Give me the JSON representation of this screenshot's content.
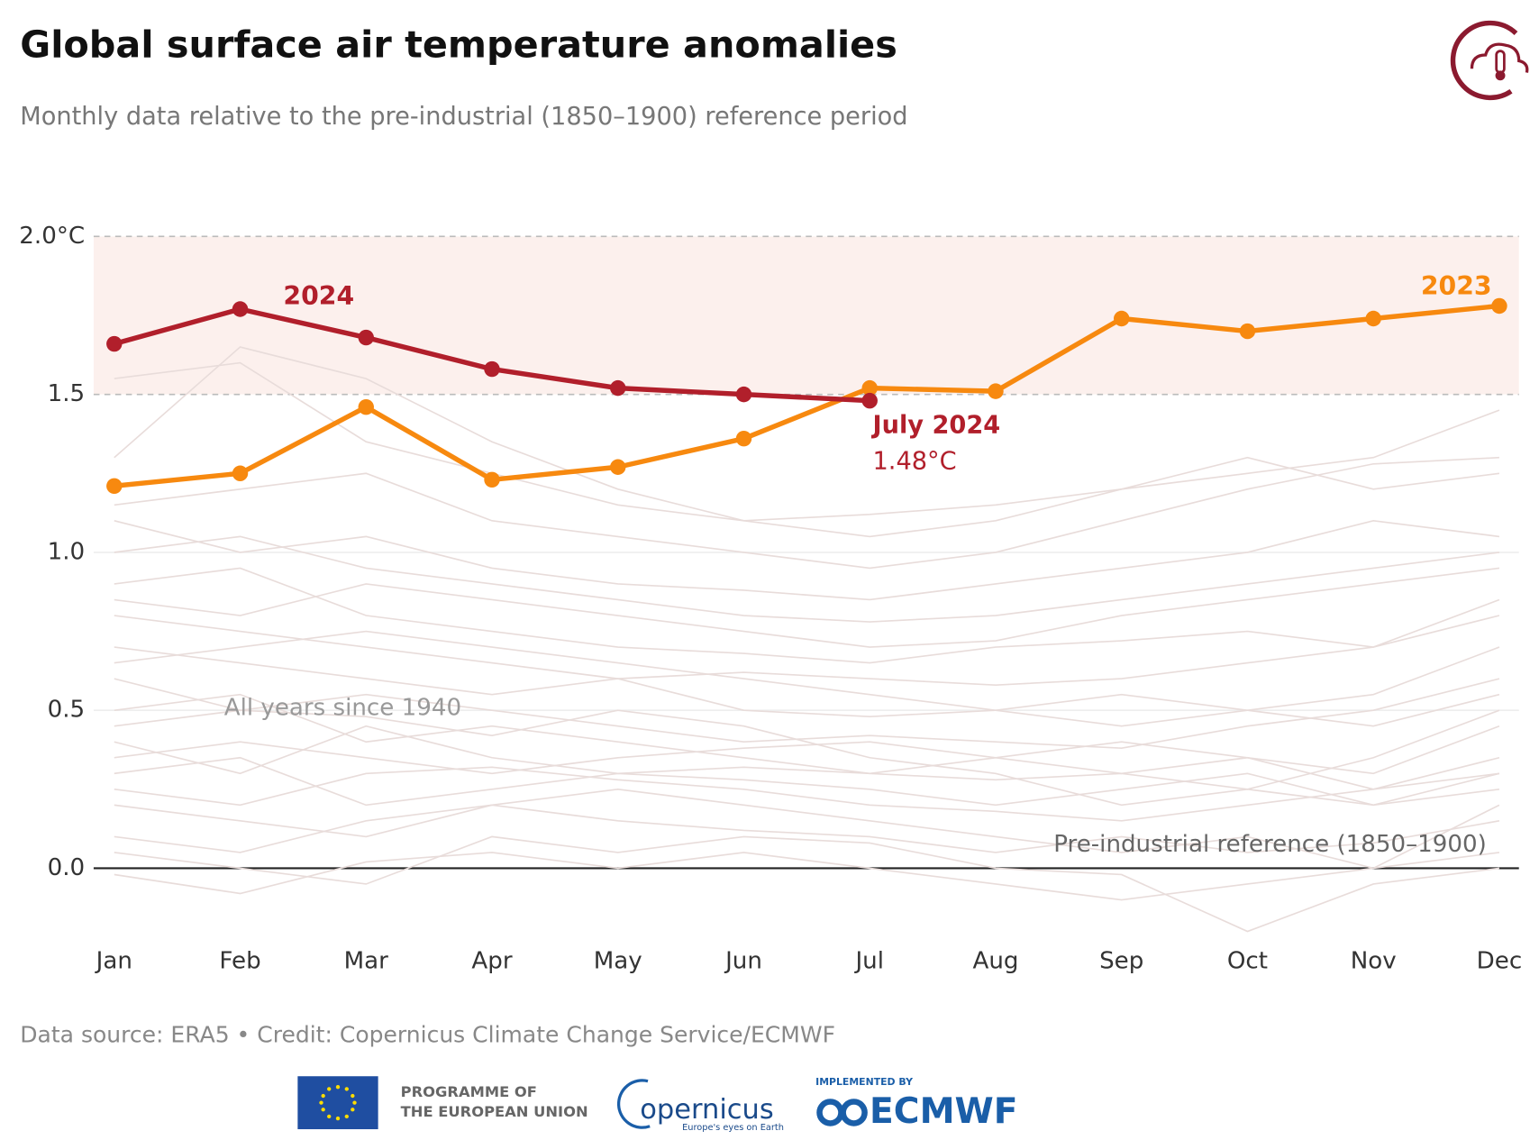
{
  "chart_data": {
    "type": "line",
    "title": "Global surface air temperature anomalies",
    "subtitle": "Monthly data relative to the pre-industrial (1850–1900) reference period",
    "categories": [
      "Jan",
      "Feb",
      "Mar",
      "Apr",
      "May",
      "Jun",
      "Jul",
      "Aug",
      "Sep",
      "Oct",
      "Nov",
      "Dec"
    ],
    "ylim": [
      -0.25,
      2.0
    ],
    "yticks": [
      {
        "value": 0,
        "label": "0.0"
      },
      0.5,
      {
        "value": 1,
        "label": "1.0"
      },
      {
        "value": 1.5,
        "label": "1.5"
      },
      {
        "value": 2,
        "label": "2.0°C"
      }
    ],
    "band": [
      1.5,
      2.0
    ],
    "band_color": "#fcf0ed",
    "series": [
      {
        "name": "2023",
        "color": "#f7890f",
        "values": [
          1.21,
          1.25,
          1.46,
          1.23,
          1.27,
          1.36,
          1.52,
          1.51,
          1.74,
          1.7,
          1.74,
          1.78
        ]
      },
      {
        "name": "2024",
        "color": "#b11f2b",
        "values": [
          1.66,
          1.77,
          1.68,
          1.58,
          1.52,
          1.5,
          1.48,
          null,
          null,
          null,
          null,
          null
        ],
        "value_labels": [
          null,
          null,
          null,
          null,
          null,
          null,
          "1.48°C",
          null,
          null,
          null,
          null,
          null
        ]
      }
    ],
    "annotations": {
      "latest": "July 2024",
      "reference": "Pre-industrial reference (1850–1900)"
    },
    "background": {
      "label": "All years since 1940",
      "color": "#e8dcda",
      "series": [
        [
          0.05,
          0.0,
          -0.05,
          0.1,
          0.05,
          0.1,
          0.08,
          0.0,
          -0.02,
          -0.2,
          -0.05,
          0.0
        ],
        [
          0.2,
          0.15,
          0.1,
          0.2,
          0.25,
          0.2,
          0.15,
          0.1,
          0.05,
          0.1,
          0.0,
          0.2
        ],
        [
          0.3,
          0.35,
          0.2,
          0.25,
          0.3,
          0.28,
          0.25,
          0.2,
          0.25,
          0.3,
          0.2,
          0.3
        ],
        [
          0.4,
          0.3,
          0.45,
          0.35,
          0.3,
          0.32,
          0.3,
          0.28,
          0.3,
          0.25,
          0.35,
          0.5
        ],
        [
          0.5,
          0.55,
          0.4,
          0.45,
          0.4,
          0.35,
          0.3,
          0.35,
          0.4,
          0.35,
          0.3,
          0.45
        ],
        [
          0.6,
          0.5,
          0.55,
          0.5,
          0.45,
          0.4,
          0.42,
          0.4,
          0.38,
          0.45,
          0.5,
          0.6
        ],
        [
          0.7,
          0.65,
          0.6,
          0.55,
          0.6,
          0.5,
          0.48,
          0.5,
          0.55,
          0.5,
          0.45,
          0.55
        ],
        [
          0.8,
          0.75,
          0.7,
          0.65,
          0.6,
          0.62,
          0.6,
          0.58,
          0.6,
          0.65,
          0.7,
          0.8
        ],
        [
          0.9,
          0.95,
          0.8,
          0.75,
          0.7,
          0.68,
          0.65,
          0.7,
          0.72,
          0.75,
          0.7,
          0.85
        ],
        [
          1.0,
          1.05,
          0.95,
          0.9,
          0.85,
          0.8,
          0.78,
          0.8,
          0.85,
          0.9,
          0.95,
          1.0
        ],
        [
          1.1,
          1.0,
          1.05,
          0.95,
          0.9,
          0.88,
          0.85,
          0.9,
          0.95,
          1.0,
          1.1,
          1.05
        ],
        [
          1.3,
          1.65,
          1.55,
          1.35,
          1.2,
          1.1,
          1.12,
          1.15,
          1.2,
          1.25,
          1.3,
          1.45
        ],
        [
          1.55,
          1.6,
          1.35,
          1.25,
          1.15,
          1.1,
          1.05,
          1.1,
          1.2,
          1.3,
          1.2,
          1.25
        ],
        [
          1.15,
          1.2,
          1.25,
          1.1,
          1.05,
          1.0,
          0.95,
          1.0,
          1.1,
          1.2,
          1.28,
          1.3
        ],
        [
          0.1,
          0.05,
          0.15,
          0.2,
          0.15,
          0.12,
          0.1,
          0.05,
          0.1,
          0.05,
          0.08,
          0.15
        ],
        [
          0.25,
          0.2,
          0.3,
          0.32,
          0.28,
          0.25,
          0.2,
          0.18,
          0.15,
          0.2,
          0.25,
          0.35
        ],
        [
          0.35,
          0.4,
          0.35,
          0.3,
          0.35,
          0.38,
          0.4,
          0.35,
          0.3,
          0.35,
          0.25,
          0.3
        ],
        [
          0.45,
          0.5,
          0.48,
          0.42,
          0.5,
          0.45,
          0.35,
          0.3,
          0.2,
          0.25,
          0.2,
          0.25
        ],
        [
          0.65,
          0.7,
          0.75,
          0.7,
          0.65,
          0.6,
          0.55,
          0.5,
          0.45,
          0.5,
          0.55,
          0.7
        ],
        [
          0.85,
          0.8,
          0.9,
          0.85,
          0.8,
          0.75,
          0.7,
          0.72,
          0.8,
          0.85,
          0.9,
          0.95
        ],
        [
          -0.02,
          -0.08,
          0.02,
          0.05,
          0.0,
          0.05,
          0.0,
          -0.05,
          -0.1,
          -0.05,
          0.0,
          0.05
        ]
      ]
    }
  },
  "footer": {
    "source": "Data source: ERA5 • Credit: Copernicus Climate Change Service/ECMWF",
    "eu_line1": "PROGRAMME OF",
    "eu_line2": "THE EUROPEAN UNION",
    "copernicus": "opernicus",
    "copernicus_tagline": "Europe's eyes on Earth",
    "implemented": "IMPLEMENTED BY",
    "ecmwf": "ECMWF"
  }
}
